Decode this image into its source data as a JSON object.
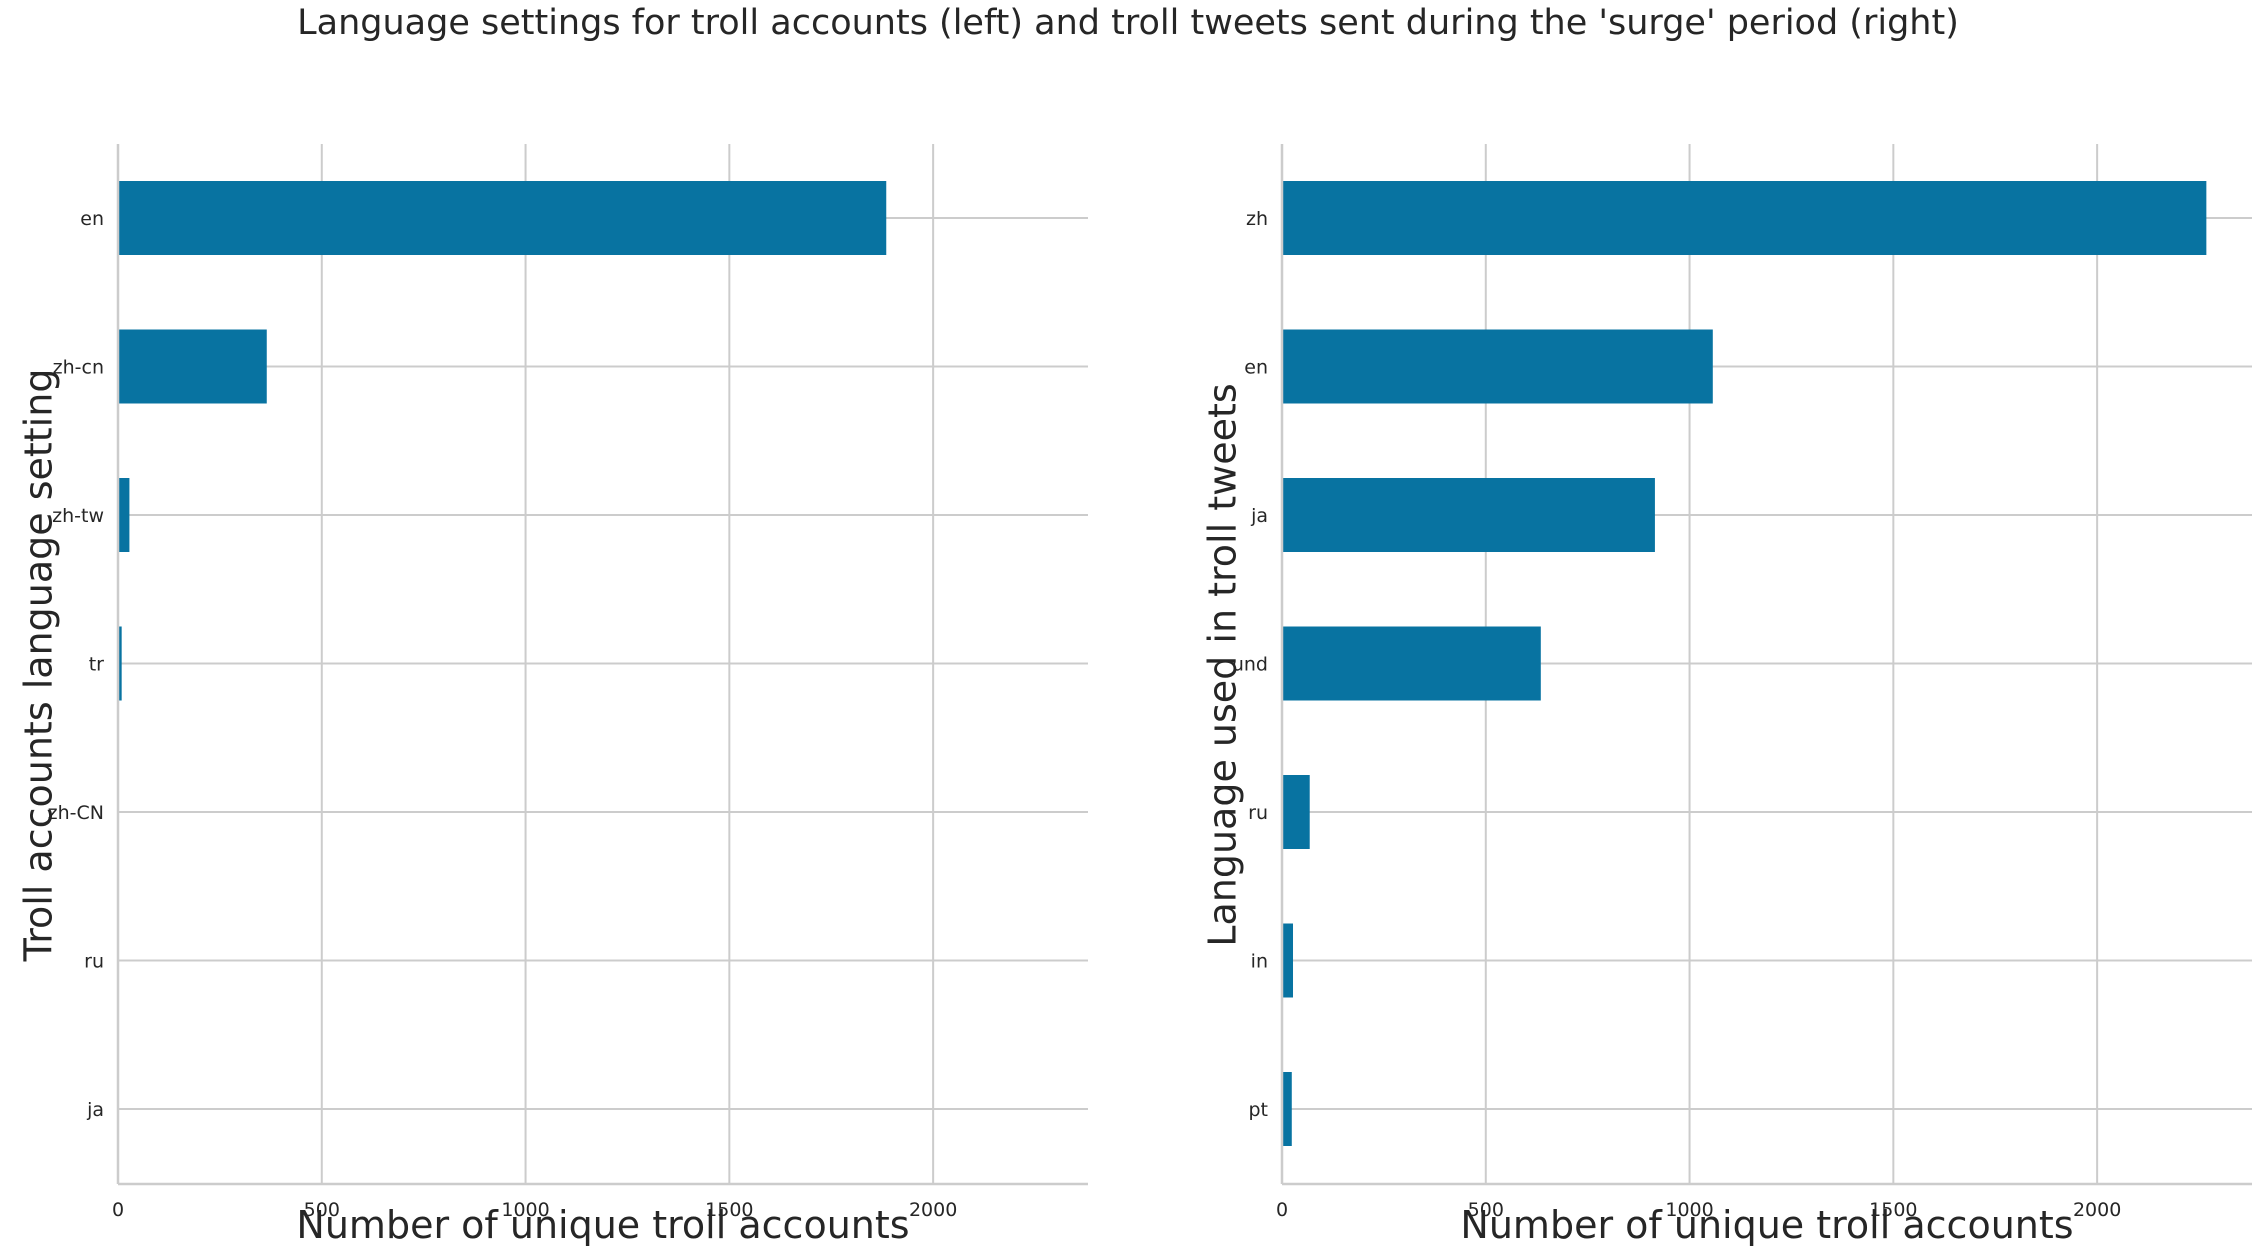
{
  "title": "Language settings for troll accounts (left) and troll tweets sent during the 'surge' period (right)",
  "colors": {
    "bar": "#0873a1",
    "grid": "#cccccc",
    "text": "#262626"
  },
  "chart_data": [
    {
      "type": "bar",
      "orientation": "horizontal",
      "categories": [
        "en",
        "zh-cn",
        "zh-tw",
        "tr",
        "zh-CN",
        "ru",
        "ja"
      ],
      "values": [
        1885,
        365,
        28,
        9,
        1,
        1,
        1
      ],
      "xlabel": "Number of unique troll accounts",
      "ylabel": "Troll accounts language setting",
      "xlim": [
        0,
        2380
      ],
      "xticks": [
        0,
        500,
        1000,
        1500,
        2000
      ],
      "grid": true
    },
    {
      "type": "bar",
      "orientation": "horizontal",
      "categories": [
        "zh",
        "en",
        "ja",
        "und",
        "ru",
        "in",
        "pt"
      ],
      "values": [
        2268,
        1057,
        915,
        635,
        68,
        27,
        24
      ],
      "xlabel": "Number of unique troll accounts",
      "ylabel": "Language used in troll tweets",
      "xlim": [
        0,
        2380
      ],
      "xticks": [
        0,
        500,
        1000,
        1500,
        2000
      ],
      "grid": true
    }
  ]
}
